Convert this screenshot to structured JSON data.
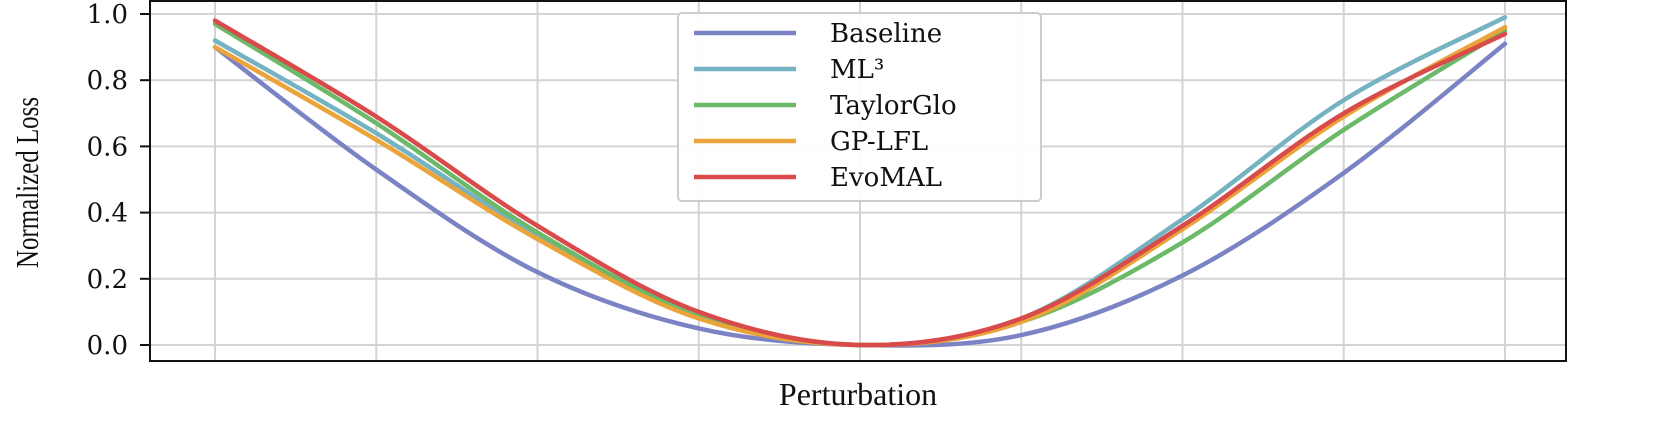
{
  "chart_data": {
    "type": "line",
    "title": "",
    "xlabel": "Perturbation",
    "ylabel": "Normalized Loss",
    "x": [
      -1.0,
      -0.75,
      -0.5,
      -0.25,
      0.0,
      0.25,
      0.5,
      0.75,
      1.0
    ],
    "ylim": [
      0,
      1.0
    ],
    "yticks": [
      "0.0",
      "0.2",
      "0.4",
      "0.6",
      "0.8",
      "1.0"
    ],
    "grid": true,
    "legend_position": "top-center",
    "series": [
      {
        "name": "Baseline",
        "color": "#7b83c4",
        "values": [
          0.9,
          0.53,
          0.22,
          0.05,
          0.0,
          0.03,
          0.21,
          0.52,
          0.91
        ]
      },
      {
        "name": "ML³",
        "color": "#75b2c2",
        "values": [
          0.92,
          0.64,
          0.33,
          0.09,
          0.0,
          0.08,
          0.38,
          0.74,
          0.99
        ]
      },
      {
        "name": "TaylorGlo",
        "color": "#6cb96a",
        "values": [
          0.97,
          0.67,
          0.34,
          0.09,
          0.0,
          0.07,
          0.31,
          0.65,
          0.95
        ]
      },
      {
        "name": "GP-LFL",
        "color": "#eba43a",
        "values": [
          0.9,
          0.62,
          0.32,
          0.08,
          0.0,
          0.07,
          0.35,
          0.69,
          0.96
        ]
      },
      {
        "name": "EvoMAL",
        "color": "#d94a4a",
        "values": [
          0.98,
          0.69,
          0.36,
          0.1,
          0.0,
          0.08,
          0.36,
          0.7,
          0.94
        ]
      }
    ]
  }
}
